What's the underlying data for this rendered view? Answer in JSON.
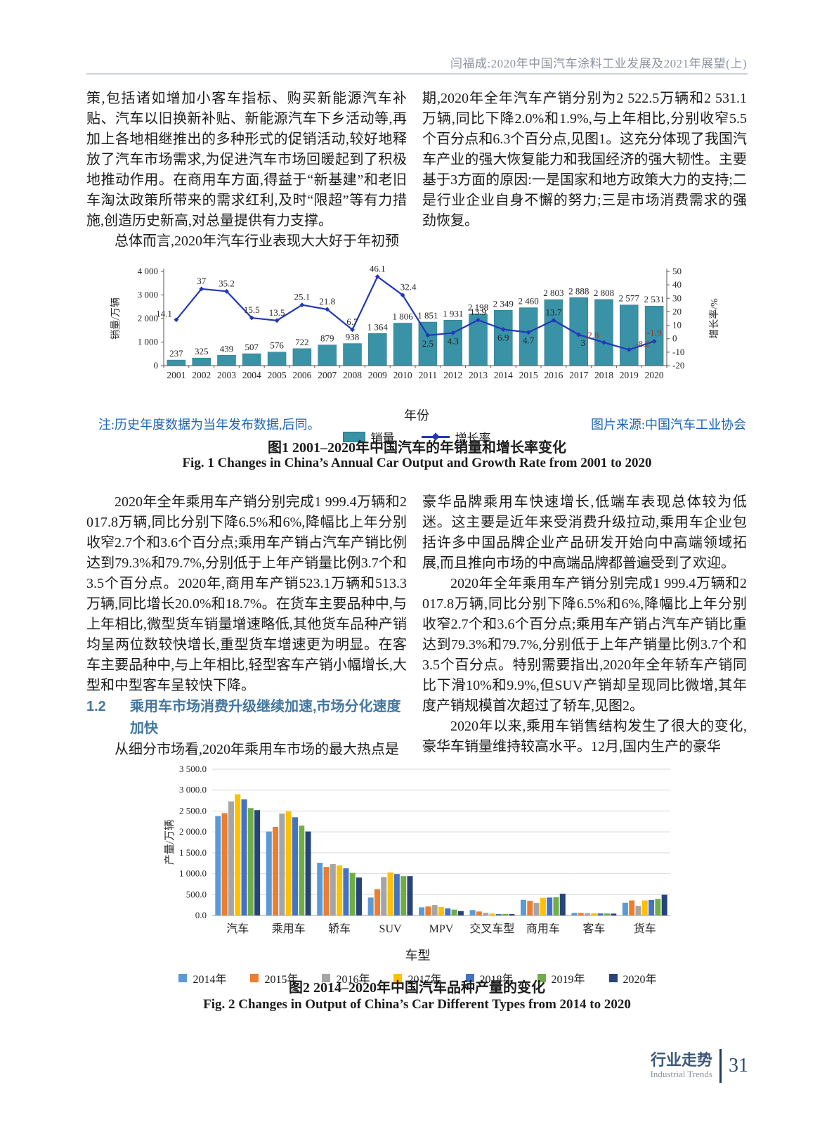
{
  "header": {
    "running_title": "闫福成:2020年中国汽车涂料工业发展及2021年展望(上)"
  },
  "top_section": {
    "left_p1": "策,包括诸如增加小客车指标、购买新能源汽车补贴、汽车以旧换新补贴、新能源汽车下乡活动等,再加上各地相继推出的多种形式的促销活动,较好地释放了汽车市场需求,为促进汽车市场回暖起到了积极地推动作用。在商用车方面,得益于“新基建”和老旧车淘汰政策所带来的需求红利,及时“限超”等有力措施,创造历史新高,对总量提供有力支撑。",
    "left_p2": "总体而言,2020年汽车行业表现大大好于年初预",
    "right_p1": "期,2020年全年汽车产销分别为2 522.5万辆和2 531.1万辆,同比下降2.0%和1.9%,与上年相比,分别收窄5.5个百分点和6.3个百分点,见图1。这充分体现了我国汽车产业的强大恢复能力和我国经济的强大韧性。主要基于3方面的原因:一是国家和地方政策大力的支持;二是行业企业自身不懈的努力;三是市场消费需求的强劲恢复。"
  },
  "figure1": {
    "note": "注:历史年度数据为当年发布数据,后同。",
    "source": "图片来源:中国汽车工业协会",
    "xlabel": "年份",
    "caption_cn": "图1   2001–2020年中国汽车的年销量和增长率变化",
    "caption_en": "Fig. 1   Changes in China’s Annual Car Output and Growth Rate from 2001 to 2020",
    "legend": {
      "bar_label": "销量",
      "line_label": "增长率"
    }
  },
  "mid_section": {
    "left_p1": "2020年全年乘用车产销分别完成1 999.4万辆和2 017.8万辆,同比分别下降6.5%和6%,降幅比上年分别收窄2.7个和3.6个百分点;乘用车产销占汽车产销比例达到79.3%和79.7%,分别低于上年产销量比例3.7个和3.5个百分点。2020年,商用车产销523.1万辆和513.3万辆,同比增长20.0%和18.7%。在货车主要品种中,与上年相比,微型货车销量增速略低,其他货车品种产销均呈两位数较快增长,重型货车增速更为明显。在客车主要品种中,与上年相比,轻型客车产销小幅增长,大型和中型客车呈较快下降。",
    "heading_number": "1.2",
    "heading_text": "乘用车市场消费升级继续加速,市场分化速度加快",
    "left_p2": "从细分市场看,2020年乘用车市场的最大热点是",
    "right_p1": "豪华品牌乘用车快速增长,低端车表现总体较为低迷。这主要是近年来受消费升级拉动,乘用车企业包括许多中国品牌企业产品研发开始向中高端领域拓展,而且推向市场的中高端品牌都普遍受到了欢迎。",
    "right_p2": "2020年全年乘用车产销分别完成1 999.4万辆和2 017.8万辆,同比分别下降6.5%和6%,降幅比上年分别收窄2.7个和3.6个百分点;乘用车产销占汽车产销比重达到79.3%和79.7%,分别低于上年产销量比例3.7个和3.5个百分点。特别需要指出,2020年全年轿车产销同比下滑10%和9.9%,但SUV产销却呈现同比微增,其年度产销规模首次超过了轿车,见图2。",
    "right_p3": "2020年以来,乘用车销售结构发生了很大的变化,豪华车销量维持较高水平。12月,国内生产的豪华"
  },
  "figure2": {
    "xlabel": "车型",
    "caption_cn": "图2   2014–2020年中国汽车品种产量的变化",
    "caption_en": "Fig. 2   Changes in Output of China’s Car Different Types from 2014 to 2020"
  },
  "footer": {
    "section_cn": "行业走势",
    "section_en": "Industrial Trends",
    "page_number": "31"
  },
  "chart_data": [
    {
      "type": "bar+line",
      "title": "2001–2020年中国汽车的年销量和增长率变化",
      "x": [
        "2001",
        "2002",
        "2003",
        "2004",
        "2005",
        "2006",
        "2007",
        "2008",
        "2009",
        "2010",
        "2011",
        "2012",
        "2013",
        "2014",
        "2015",
        "2016",
        "2017",
        "2018",
        "2019",
        "2020"
      ],
      "xlabel": "年份",
      "left_axis": {
        "label": "销量/万辆",
        "min": 0,
        "max": 4000,
        "tick_values": [
          0,
          1000,
          2000,
          3000,
          4000
        ],
        "ticks": [
          "0",
          "1 000",
          "2 000",
          "3 000",
          "4 000"
        ]
      },
      "right_axis": {
        "label": "增长率/%",
        "min": -20,
        "max": 50,
        "tick_values": [
          -20,
          -10,
          0,
          10,
          20,
          30,
          40,
          50
        ],
        "ticks": [
          "-20",
          "-10",
          "0",
          "10",
          "20",
          "30",
          "40",
          "50"
        ]
      },
      "series": [
        {
          "name": "销量",
          "kind": "bar",
          "color": "#3a92a6",
          "values": [
            237,
            325,
            439,
            507,
            576,
            722,
            879,
            938,
            1364,
            1806,
            1851,
            1931,
            2198,
            2349,
            2460,
            2803,
            2888,
            2808,
            2577,
            2531
          ],
          "labels": [
            "237",
            "325",
            "439",
            "507",
            "576",
            "722",
            "879",
            "938",
            "1 364",
            "1 806",
            "1 851",
            "1 931",
            "2 198",
            "2 349",
            "2 460",
            "2 803",
            "2 888",
            "2 808",
            "2 577",
            "2 531"
          ]
        },
        {
          "name": "增长率",
          "kind": "line",
          "color": "#2238b8",
          "negative_label_color": "#9c3a23",
          "values": [
            14.1,
            37,
            35.2,
            15.5,
            13.5,
            25.1,
            21.8,
            6.7,
            46.1,
            32.4,
            2.5,
            4.3,
            13.9,
            6.9,
            4.7,
            13.7,
            3,
            -2.8,
            -8.2,
            -1.9
          ],
          "labels": [
            "14.1",
            "37",
            "35.2",
            "15.5",
            "13.5",
            "25.1",
            "21.8",
            "6.7",
            "46.1",
            "32.4",
            "2.5",
            "4.3",
            "13.9",
            "6.9",
            "4.7",
            "13.7",
            "3",
            "-2.8",
            "-8.2",
            "-1.9"
          ]
        }
      ],
      "legend_position": "bottom",
      "grid": false
    },
    {
      "type": "bar",
      "title": "2014–2020年中国汽车品种产量的变化",
      "categories": [
        "汽车",
        "乘用车",
        "轿车",
        "SUV",
        "MPV",
        "交叉车型",
        "商用车",
        "客车",
        "货车"
      ],
      "xlabel": "车型",
      "ylabel": "产量/万辆",
      "ylim": [
        0,
        3500
      ],
      "ytick_values": [
        0,
        500,
        1000,
        1500,
        2000,
        2500,
        3000,
        3500
      ],
      "yticks": [
        "0.0",
        "500.0",
        "1 000.0",
        "1 500.0",
        "2 000.0",
        "2 500.0",
        "3 000.0",
        "3 500.0"
      ],
      "series": [
        {
          "name": "2014年",
          "color": "#5b9bd5",
          "values": [
            2380,
            2010,
            1260,
            430,
            195,
            130,
            375,
            60,
            305
          ]
        },
        {
          "name": "2015年",
          "color": "#ed7d31",
          "values": [
            2450,
            2120,
            1160,
            630,
            215,
            95,
            350,
            60,
            360
          ]
        },
        {
          "name": "2016年",
          "color": "#a5a5a5",
          "values": [
            2730,
            2440,
            1230,
            920,
            250,
            65,
            300,
            55,
            230
          ]
        },
        {
          "name": "2017年",
          "color": "#ffc000",
          "values": [
            2900,
            2490,
            1200,
            1030,
            205,
            45,
            425,
            55,
            360
          ]
        },
        {
          "name": "2018年",
          "color": "#4472c4",
          "values": [
            2780,
            2350,
            1130,
            990,
            170,
            35,
            430,
            50,
            370
          ]
        },
        {
          "name": "2019年",
          "color": "#70ad47",
          "values": [
            2570,
            2150,
            1020,
            940,
            140,
            38,
            435,
            48,
            395
          ]
        },
        {
          "name": "2020年",
          "color": "#264478",
          "values": [
            2520,
            2010,
            910,
            940,
            105,
            33,
            520,
            45,
            495
          ]
        }
      ],
      "legend_position": "bottom",
      "grid": true
    }
  ]
}
